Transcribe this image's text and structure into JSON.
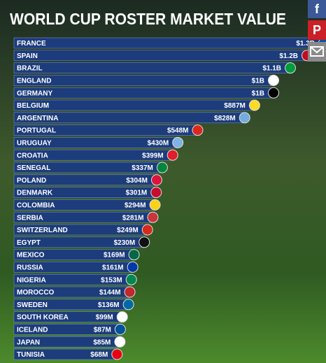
{
  "chart_data": {
    "type": "bar",
    "orientation": "horizontal",
    "title": "WORLD CUP ROSTER MARKET VALUE",
    "categories": [
      "FRANCE",
      "SPAIN",
      "BRAZIL",
      "ENGLAND",
      "GERMANY",
      "BELGIUM",
      "ARGENTINA",
      "PORTUGAL",
      "URUGUAY",
      "CROATIA",
      "SENEGAL",
      "POLAND",
      "DENMARK",
      "COLOMBIA",
      "SERBIA",
      "SWITZERLAND",
      "EGYPT",
      "MEXICO",
      "RUSSIA",
      "NIGERIA",
      "MOROCCO",
      "SWEDEN",
      "SOUTH KOREA",
      "ICELAND",
      "JAPAN",
      "TUNISIA"
    ],
    "values": [
      1300,
      1200,
      1100,
      1000,
      1000,
      887,
      828,
      548,
      430,
      399,
      337,
      304,
      301,
      294,
      281,
      249,
      230,
      169,
      161,
      153,
      144,
      136,
      99,
      87,
      85,
      68
    ],
    "value_labels": [
      "$1.3B",
      "$1.2B",
      "$1.1B",
      "$1B",
      "$1B",
      "$887M",
      "$828M",
      "$548M",
      "$430M",
      "$399M",
      "$337M",
      "$304M",
      "$301M",
      "$294M",
      "$281M",
      "$249M",
      "$230M",
      "$169M",
      "$161M",
      "$153M",
      "$144M",
      "$136M",
      "$99M",
      "$87M",
      "$85M",
      "$68M"
    ],
    "xlim": [
      0,
      1300
    ],
    "color": "#1d3c7c"
  }
}
